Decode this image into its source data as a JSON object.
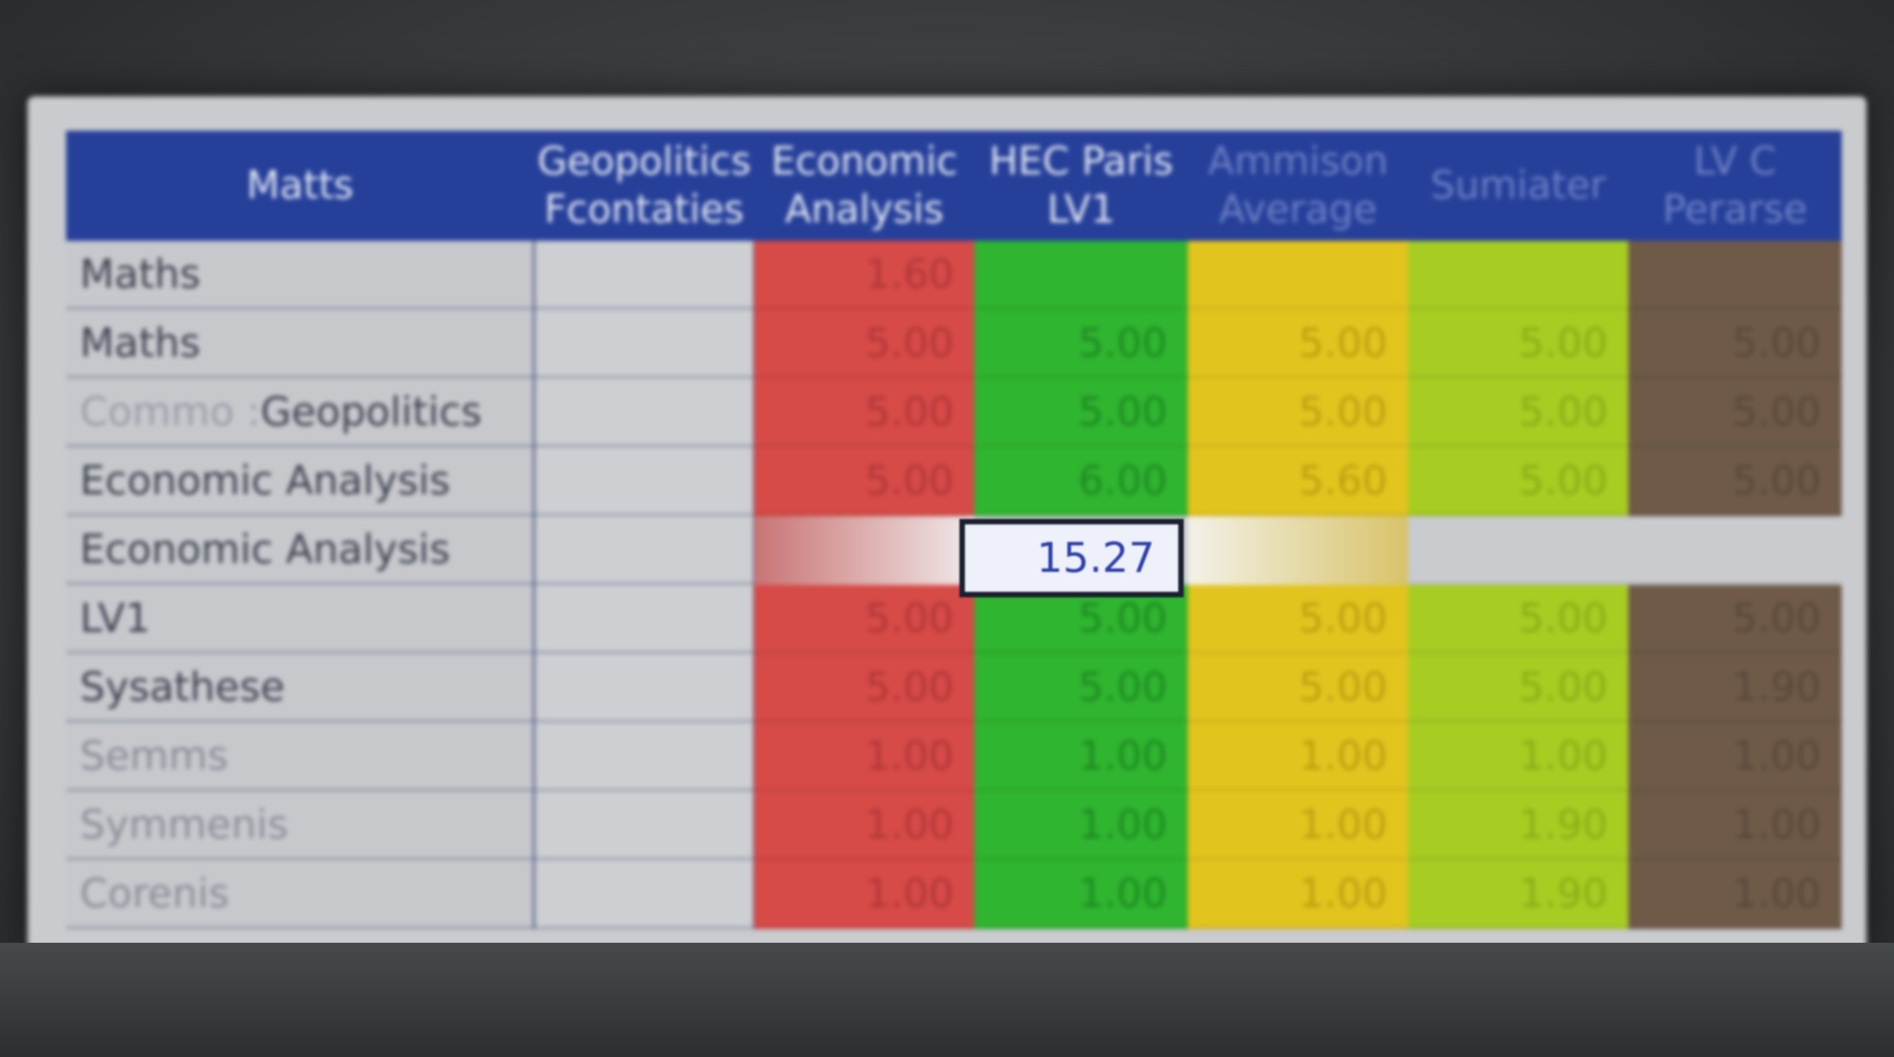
{
  "headers": [
    {
      "label": "Matts",
      "dim": false
    },
    {
      "label": "Geopolitics\nFcontaties",
      "dim": false
    },
    {
      "label": "Economic\nAnalysis",
      "dim": false
    },
    {
      "label": "HEC Paris\nLV1",
      "dim": false
    },
    {
      "label": "Ammison\nAverage",
      "dim": true
    },
    {
      "label": "Sumiater",
      "dim": true
    },
    {
      "label": "LV C\nPerarse",
      "dim": true
    }
  ],
  "row_labels": [
    {
      "text": "Maths",
      "faint": false
    },
    {
      "text": "Maths",
      "faint": false
    },
    {
      "text": "Geopolitics",
      "faint": false,
      "prefix": "Commo : "
    },
    {
      "text": "Economic Analysis",
      "faint": false
    },
    {
      "text": "Economic Analysis",
      "faint": false
    },
    {
      "text": "LV1",
      "faint": false
    },
    {
      "text": "Sysathese",
      "faint": false
    },
    {
      "text": "Semms",
      "faint": true
    },
    {
      "text": "Symmenis",
      "faint": true
    },
    {
      "text": "Corenis",
      "faint": true
    }
  ],
  "columns": [
    {
      "name": "economic-analysis",
      "color": "#d64a47",
      "text_color": "#b13838",
      "values": [
        "1.60",
        "5.00",
        "5.00",
        "5.00",
        "",
        "5.00",
        "5.00",
        "1.00",
        "1.00",
        "1.00"
      ]
    },
    {
      "name": "hec-paris-lv1",
      "color": "#2fb52f",
      "text_color": "#1e8a23",
      "values": [
        "",
        "5.00",
        "5.00",
        "6.00",
        "15.27",
        "5.00",
        "5.00",
        "1.00",
        "1.00",
        "1.00"
      ]
    },
    {
      "name": "ammison-average",
      "color": "#e2c41e",
      "text_color": "#bf9e10",
      "values": [
        "",
        "5.00",
        "5.00",
        "5.60",
        "",
        "5.00",
        "5.00",
        "1.00",
        "1.00",
        "1.00"
      ]
    },
    {
      "name": "sumiater",
      "color": "#a7cc22",
      "text_color": "#8aae16",
      "values": [
        "",
        "5.00",
        "5.00",
        "5.00",
        "",
        "5.00",
        "5.00",
        "1.00",
        "1.90",
        "1.90"
      ]
    },
    {
      "name": "lv-c-perarse",
      "color": "#6e5a47",
      "text_color": "#5b4839",
      "values": [
        "",
        "5.00",
        "5.00",
        "5.00",
        "",
        "5.00",
        "1.90",
        "1.00",
        "1.00",
        "1.00"
      ]
    }
  ],
  "active_cell": {
    "value": "15.27",
    "row": 4,
    "column": "hec-paris-lv1"
  },
  "colors": {
    "header": "#26409a",
    "grid_bg": "#c6c8cc",
    "active_text": "#2d3fa8"
  }
}
